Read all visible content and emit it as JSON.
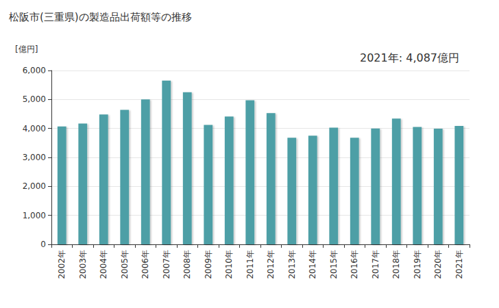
{
  "chart_data": {
    "type": "bar",
    "title": "松阪市(三重県)の製造品出荷額等の推移",
    "y_label": "[億円]",
    "annotation": "2021年: 4,087億円",
    "categories": [
      "2002年",
      "2003年",
      "2004年",
      "2005年",
      "2006年",
      "2007年",
      "2008年",
      "2009年",
      "2010年",
      "2011年",
      "2012年",
      "2013年",
      "2014年",
      "2015年",
      "2016年",
      "2017年",
      "2018年",
      "2019年",
      "2020年",
      "2021年"
    ],
    "values": [
      4070,
      4170,
      4480,
      4640,
      5000,
      5650,
      5250,
      4120,
      4410,
      4970,
      4530,
      3680,
      3750,
      4030,
      3680,
      4000,
      4340,
      4050,
      3990,
      4087
    ],
    "color": "#4e9fa6",
    "ylim": [
      0,
      6000
    ],
    "yticks": [
      0,
      {
        "value": 1000,
        "label": "1,000"
      },
      {
        "value": 2000,
        "label": "2,000"
      },
      {
        "value": 3000,
        "label": "3,000"
      },
      {
        "value": 4000,
        "label": "4,000"
      },
      {
        "value": 5000,
        "label": "5,000"
      },
      {
        "value": 6000,
        "label": "6,000"
      }
    ],
    "grid": true
  }
}
